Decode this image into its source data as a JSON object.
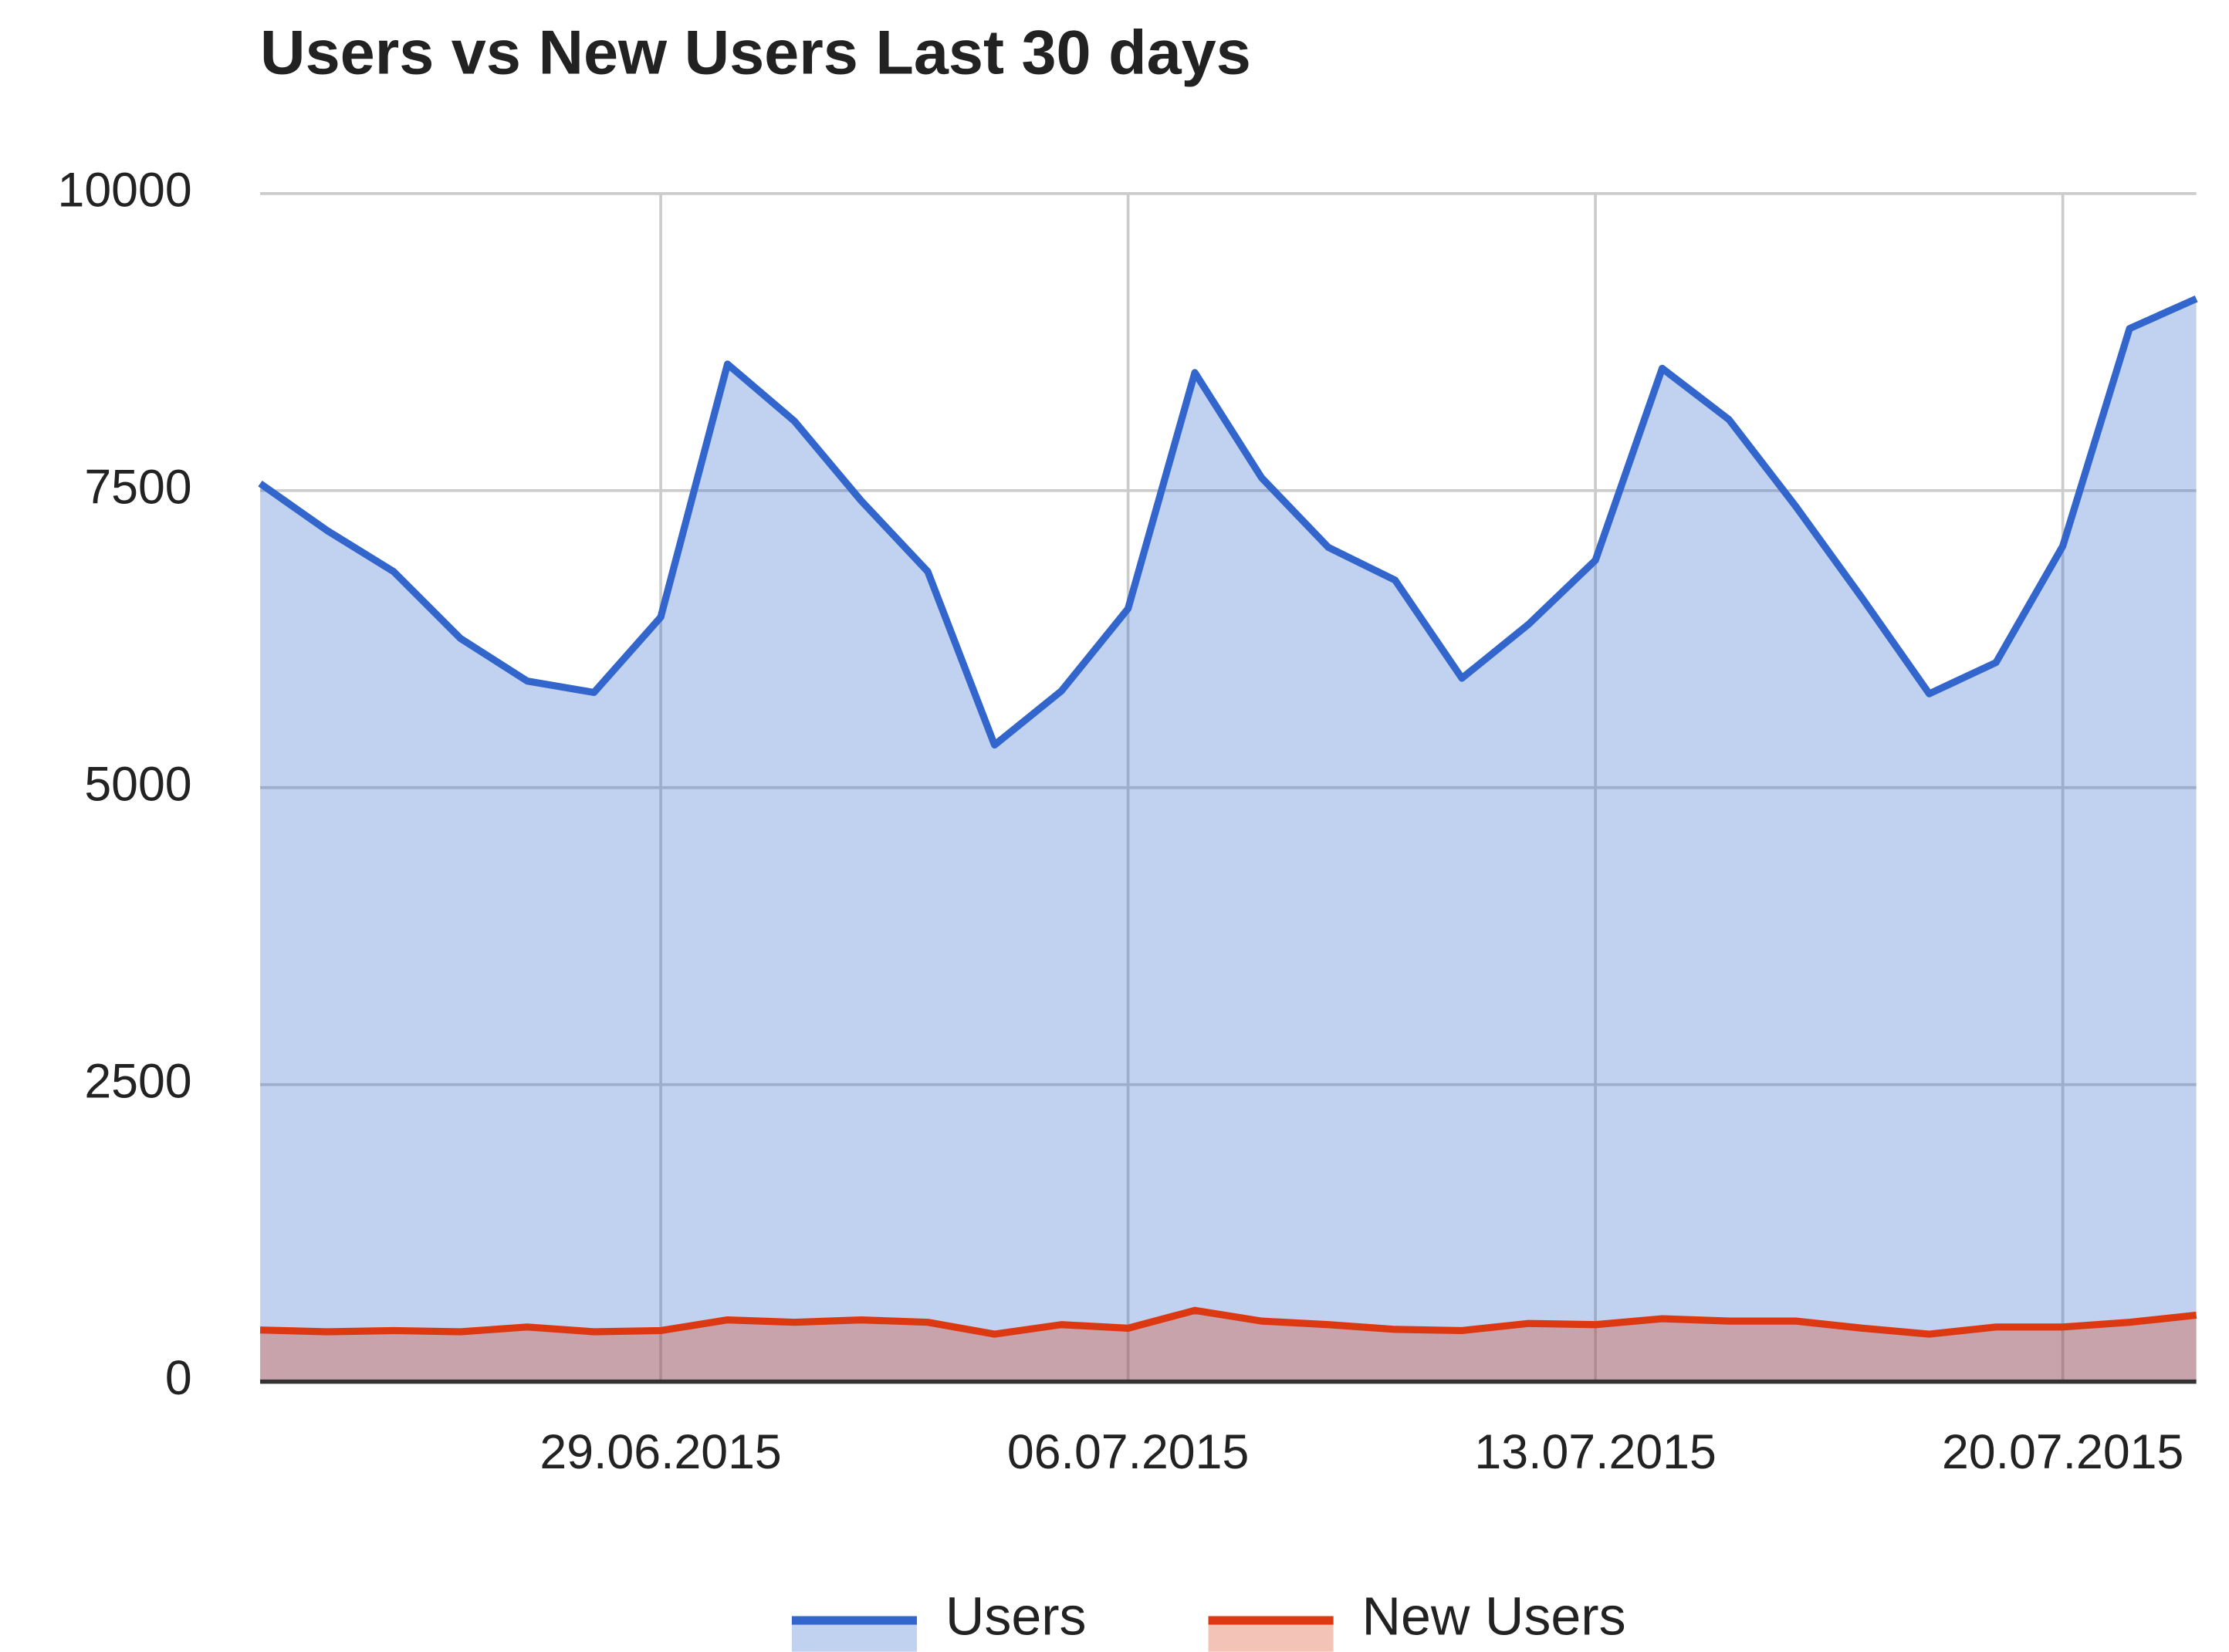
{
  "chart_data": {
    "type": "area",
    "title": "Users vs New Users Last 30 days",
    "x": [
      "2015-06-23",
      "2015-06-24",
      "2015-06-25",
      "2015-06-26",
      "2015-06-27",
      "2015-06-28",
      "2015-06-29",
      "2015-06-30",
      "2015-07-01",
      "2015-07-02",
      "2015-07-03",
      "2015-07-04",
      "2015-07-05",
      "2015-07-06",
      "2015-07-07",
      "2015-07-08",
      "2015-07-09",
      "2015-07-10",
      "2015-07-11",
      "2015-07-12",
      "2015-07-13",
      "2015-07-14",
      "2015-07-15",
      "2015-07-16",
      "2015-07-17",
      "2015-07-18",
      "2015-07-19",
      "2015-07-20",
      "2015-07-21",
      "2015-07-22"
    ],
    "series": [
      {
        "name": "Users",
        "color": "#3366cc",
        "values": [
          7560,
          7165,
          6818,
          6256,
          5897,
          5801,
          6435,
          8565,
          8086,
          7416,
          6818,
          5359,
          5813,
          6507,
          8493,
          7608,
          7022,
          6746,
          5921,
          6376,
          6914,
          8529,
          8098,
          7368,
          6591,
          5790,
          6053,
          7033,
          8864,
          9115
        ]
      },
      {
        "name": "New Users",
        "color": "#dc3912",
        "values": [
          435,
          420,
          430,
          420,
          460,
          420,
          430,
          520,
          500,
          520,
          500,
          400,
          480,
          450,
          600,
          510,
          480,
          440,
          430,
          490,
          480,
          530,
          510,
          510,
          450,
          400,
          460,
          460,
          500,
          560
        ]
      }
    ],
    "xlim": [
      "2015-06-23",
      "2015-07-22"
    ],
    "xticks": [
      {
        "value": "2015-06-29",
        "label": "29.06.2015"
      },
      {
        "value": "2015-07-06",
        "label": "06.07.2015"
      },
      {
        "value": "2015-07-13",
        "label": "13.07.2015"
      },
      {
        "value": "2015-07-20",
        "label": "20.07.2015"
      }
    ],
    "ylim": [
      0,
      10000
    ],
    "yticks": [
      0,
      2500,
      5000,
      7500,
      10000
    ],
    "grid": true,
    "legend": "bottom"
  }
}
